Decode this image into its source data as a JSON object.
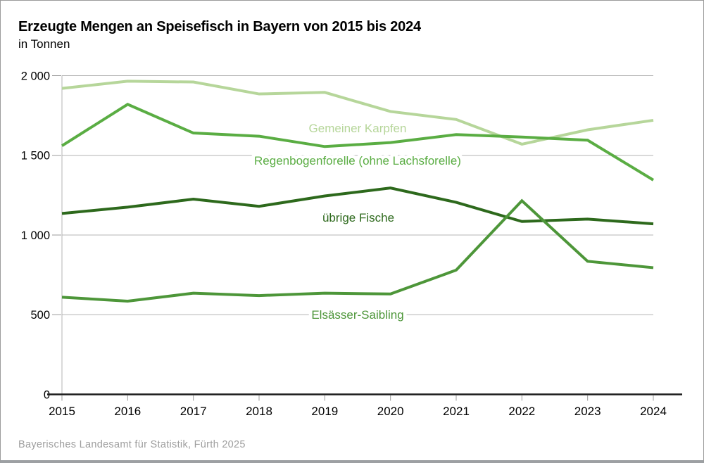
{
  "title": "Erzeugte Mengen an Speisefisch in Bayern von 2015 bis 2024",
  "subtitle": "in Tonnen",
  "source": "Bayerisches Landesamt für Statistik, Fürth 2025",
  "colors": {
    "grid": "#b4b4b4",
    "axis": "#1a1a1a",
    "tick": "#9b9b9b",
    "axis_label": "#000000",
    "background": "#ffffff",
    "border": "#9b9b9b"
  },
  "chart_data": {
    "type": "line",
    "title": "Erzeugte Mengen an Speisefisch in Bayern von 2015 bis 2024",
    "subtitle": "in Tonnen",
    "xlabel": "",
    "ylabel": "Tonnen",
    "x": [
      2015,
      2016,
      2017,
      2018,
      2019,
      2020,
      2021,
      2022,
      2023,
      2024
    ],
    "ylim": [
      0,
      2000
    ],
    "yticks": [
      0,
      500,
      1000,
      1500,
      2000
    ],
    "ytick_labels": [
      "0",
      "500",
      "1 000",
      "1 500",
      "2 000"
    ],
    "grid": true,
    "legend_position": "inline-labels",
    "series": [
      {
        "name": "Gemeiner Karpfen",
        "color": "#b6d69a",
        "values": [
          1920,
          1965,
          1960,
          1885,
          1895,
          1775,
          1725,
          1570,
          1660,
          1720
        ],
        "label": {
          "x": 507,
          "y": 181
        }
      },
      {
        "name": "Regenbogenforelle (ohne Lachsforelle)",
        "color": "#5aad43",
        "values": [
          1560,
          1820,
          1640,
          1620,
          1555,
          1580,
          1630,
          1615,
          1595,
          1345
        ],
        "label": {
          "x": 507,
          "y": 227
        }
      },
      {
        "name": "übrige Fische",
        "color": "#2d691c",
        "values": [
          1135,
          1175,
          1225,
          1180,
          1245,
          1295,
          1205,
          1085,
          1100,
          1070
        ],
        "label": {
          "x": 508,
          "y": 308
        }
      },
      {
        "name": "Elsässer-Saibling",
        "color": "#4d9639",
        "values": [
          610,
          585,
          635,
          620,
          635,
          630,
          780,
          1215,
          835,
          795
        ],
        "label": {
          "x": 507,
          "y": 446
        }
      }
    ]
  }
}
